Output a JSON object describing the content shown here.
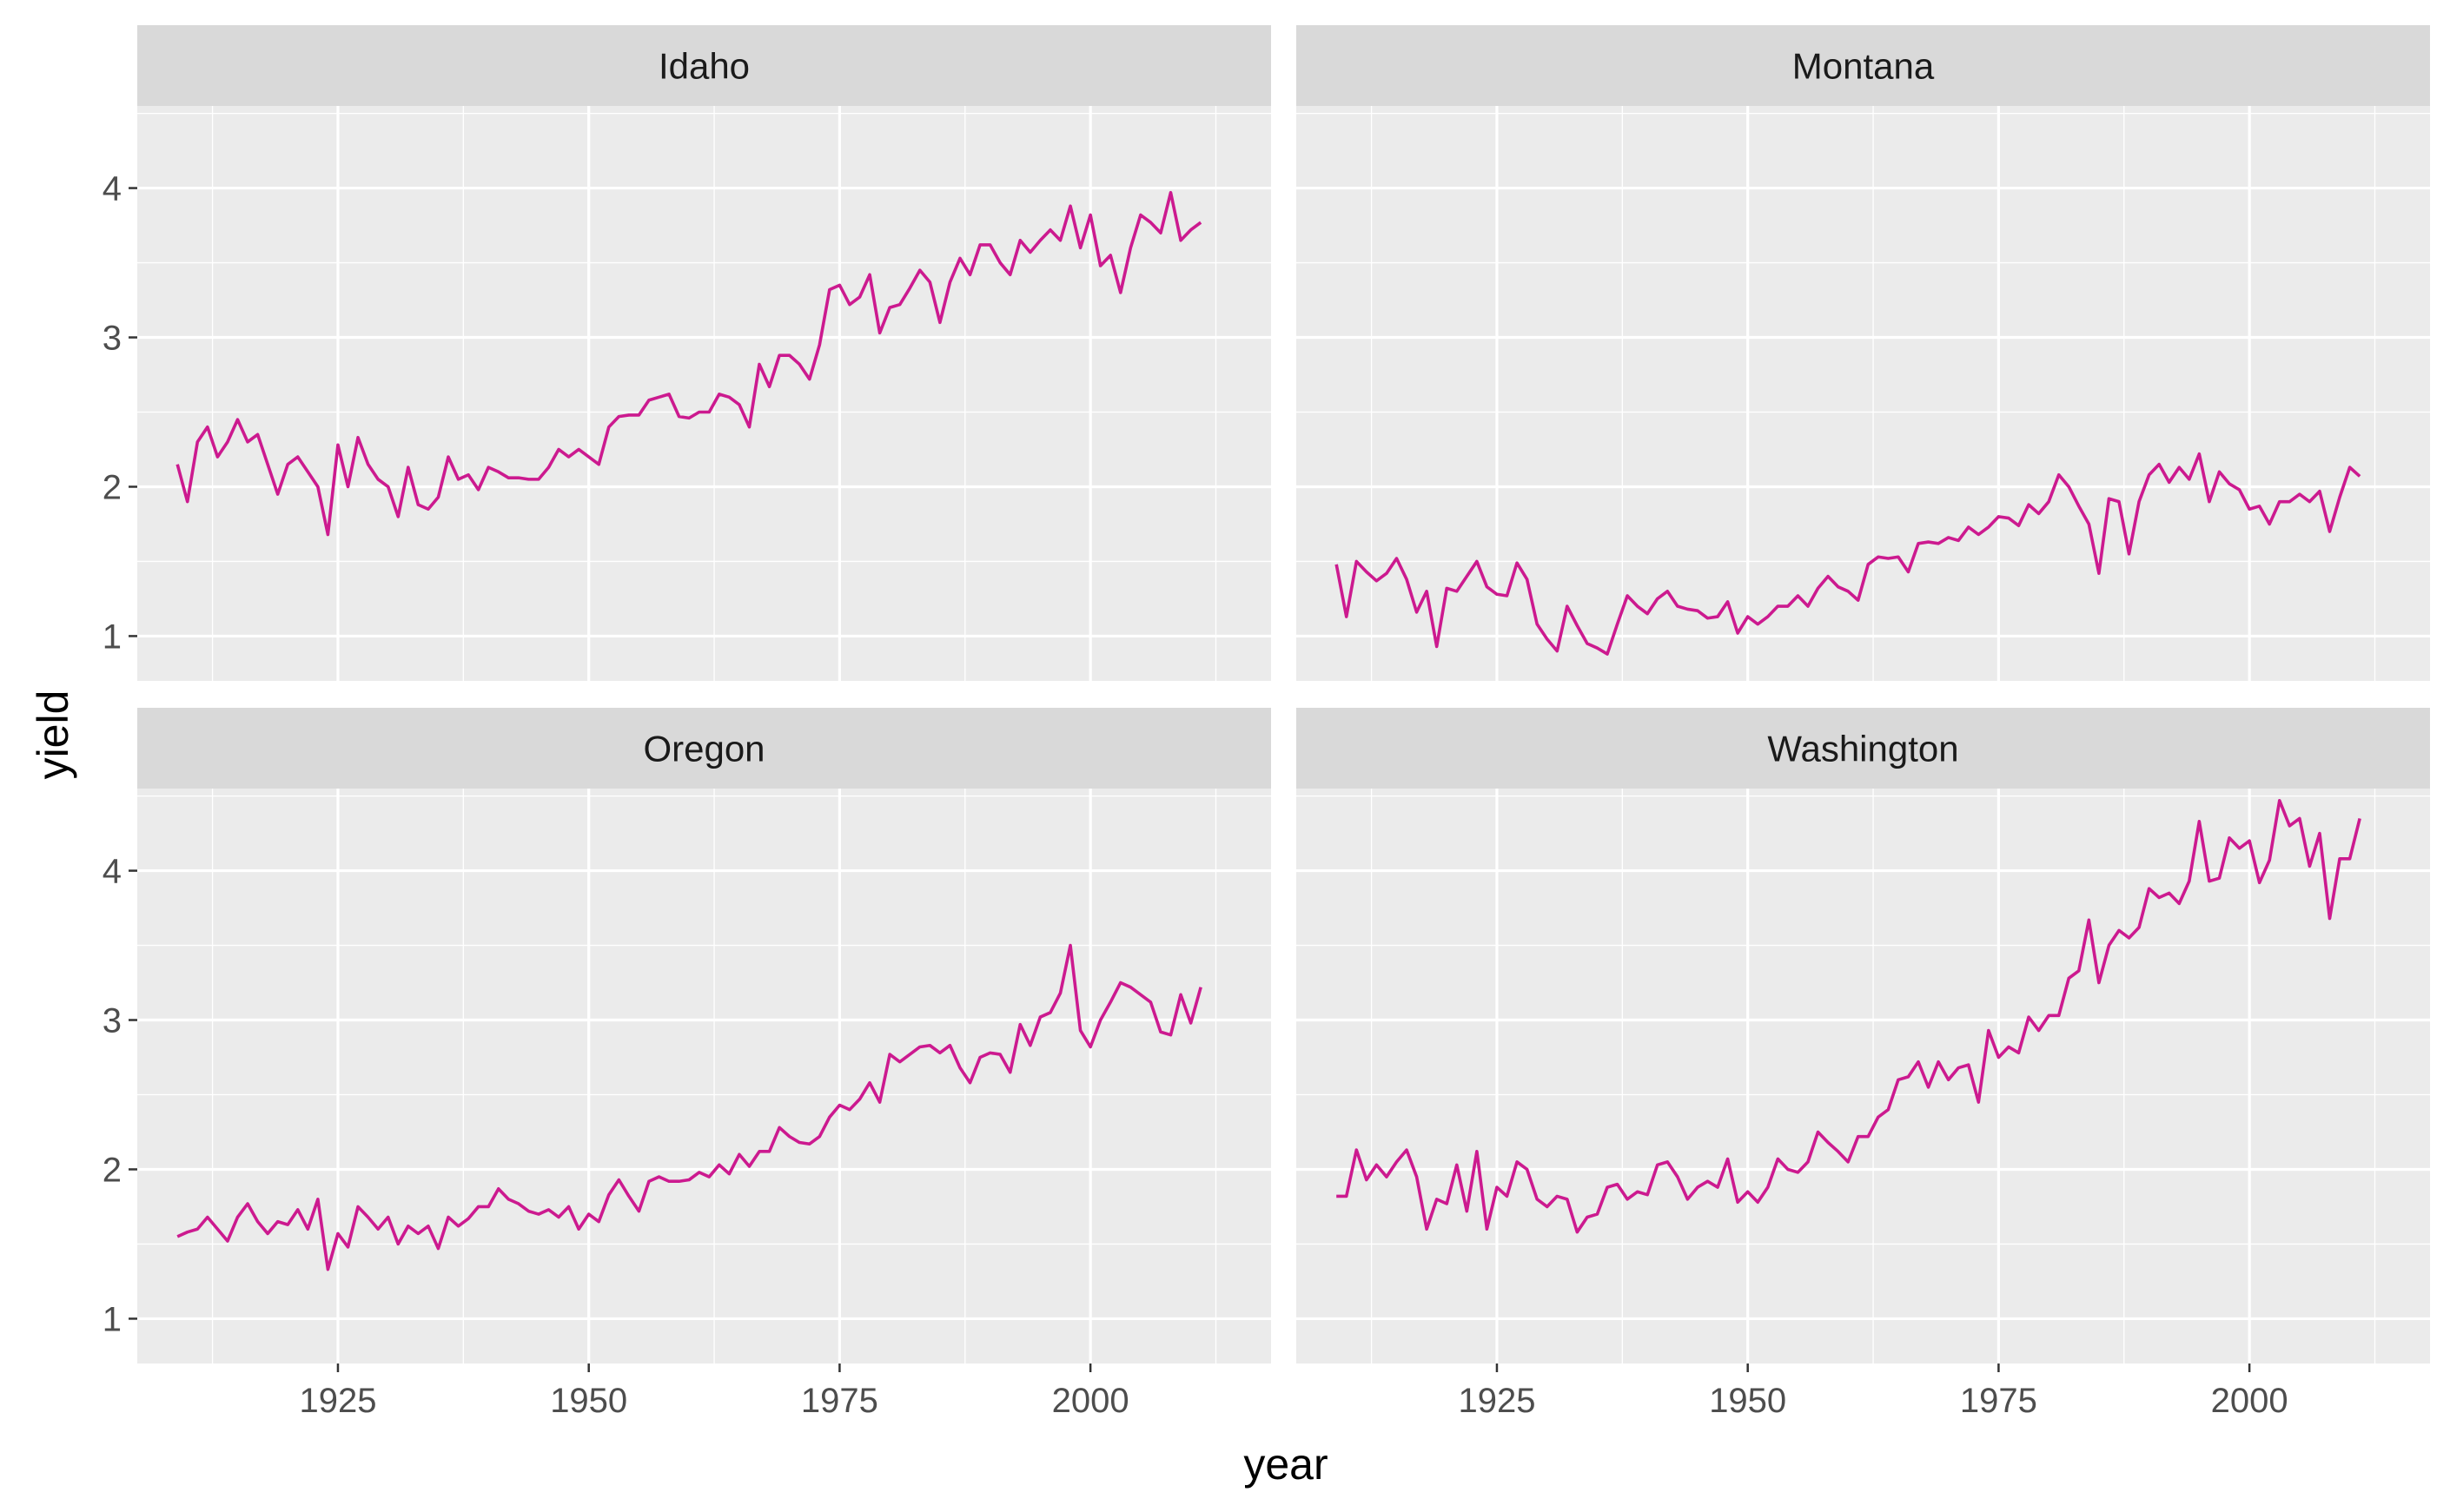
{
  "chart_data": {
    "type": "line",
    "facet_layout": "2x2 grid, shared axes",
    "xlabel": "year",
    "ylabel": "yield",
    "xlim": [
      1905,
      2018
    ],
    "ylim": [
      0.7,
      4.55
    ],
    "x_ticks": [
      1925,
      1950,
      1975,
      2000
    ],
    "x_tick_labels": [
      "1925",
      "1950",
      "1975",
      "2000"
    ],
    "y_ticks": [
      1,
      2,
      3,
      4
    ],
    "y_tick_labels": [
      "1",
      "2",
      "3",
      "4"
    ],
    "line_color": "#CC1A8F",
    "panel_background": "#EBEBEB",
    "strip_background": "#D9D9D9",
    "grid": true,
    "x_start": 1909,
    "panels": [
      {
        "name": "Idaho",
        "values": [
          2.15,
          1.9,
          2.3,
          2.4,
          2.2,
          2.3,
          2.45,
          2.3,
          2.35,
          2.15,
          1.95,
          2.15,
          2.2,
          2.1,
          2.0,
          1.68,
          2.28,
          2.0,
          2.33,
          2.15,
          2.05,
          2.0,
          1.8,
          2.13,
          1.88,
          1.85,
          1.93,
          2.2,
          2.05,
          2.08,
          1.98,
          2.13,
          2.1,
          2.06,
          2.06,
          2.05,
          2.05,
          2.13,
          2.25,
          2.2,
          2.25,
          2.2,
          2.15,
          2.4,
          2.47,
          2.48,
          2.48,
          2.58,
          2.6,
          2.62,
          2.47,
          2.46,
          2.5,
          2.5,
          2.62,
          2.6,
          2.55,
          2.4,
          2.82,
          2.67,
          2.88,
          2.88,
          2.82,
          2.72,
          2.95,
          3.32,
          3.35,
          3.22,
          3.27,
          3.42,
          3.03,
          3.2,
          3.22,
          3.33,
          3.45,
          3.37,
          3.1,
          3.37,
          3.53,
          3.42,
          3.62,
          3.62,
          3.5,
          3.42,
          3.65,
          3.57,
          3.65,
          3.72,
          3.65,
          3.88,
          3.6,
          3.82,
          3.48,
          3.55,
          3.3,
          3.6,
          3.82,
          3.77,
          3.7,
          3.97,
          3.65,
          3.72,
          3.77
        ]
      },
      {
        "name": "Montana",
        "values": [
          1.48,
          1.13,
          1.5,
          1.43,
          1.37,
          1.42,
          1.52,
          1.38,
          1.16,
          1.3,
          0.93,
          1.32,
          1.3,
          1.4,
          1.5,
          1.33,
          1.28,
          1.27,
          1.49,
          1.38,
          1.08,
          0.98,
          0.9,
          1.2,
          1.07,
          0.95,
          0.92,
          0.88,
          1.08,
          1.27,
          1.2,
          1.15,
          1.25,
          1.3,
          1.2,
          1.18,
          1.17,
          1.12,
          1.13,
          1.23,
          1.02,
          1.13,
          1.08,
          1.13,
          1.2,
          1.2,
          1.27,
          1.2,
          1.32,
          1.4,
          1.33,
          1.3,
          1.24,
          1.48,
          1.53,
          1.52,
          1.53,
          1.43,
          1.62,
          1.63,
          1.62,
          1.66,
          1.64,
          1.73,
          1.68,
          1.73,
          1.8,
          1.79,
          1.74,
          1.88,
          1.82,
          1.9,
          2.08,
          2.0,
          1.87,
          1.75,
          1.42,
          1.92,
          1.9,
          1.55,
          1.9,
          2.08,
          2.15,
          2.03,
          2.13,
          2.05,
          2.22,
          1.9,
          2.1,
          2.02,
          1.98,
          1.85,
          1.87,
          1.75,
          1.9,
          1.9,
          1.95,
          1.9,
          1.97,
          1.7,
          1.93,
          2.13,
          2.07
        ]
      },
      {
        "name": "Oregon",
        "values": [
          1.55,
          1.58,
          1.6,
          1.68,
          1.6,
          1.52,
          1.68,
          1.77,
          1.65,
          1.57,
          1.65,
          1.63,
          1.73,
          1.6,
          1.8,
          1.33,
          1.57,
          1.48,
          1.75,
          1.68,
          1.6,
          1.68,
          1.5,
          1.62,
          1.57,
          1.62,
          1.47,
          1.68,
          1.62,
          1.67,
          1.75,
          1.75,
          1.87,
          1.8,
          1.77,
          1.72,
          1.7,
          1.73,
          1.68,
          1.75,
          1.6,
          1.7,
          1.65,
          1.83,
          1.93,
          1.82,
          1.72,
          1.92,
          1.95,
          1.92,
          1.92,
          1.93,
          1.98,
          1.95,
          2.03,
          1.97,
          2.1,
          2.02,
          2.12,
          2.12,
          2.28,
          2.22,
          2.18,
          2.17,
          2.22,
          2.35,
          2.43,
          2.4,
          2.47,
          2.58,
          2.45,
          2.77,
          2.72,
          2.77,
          2.82,
          2.83,
          2.78,
          2.83,
          2.68,
          2.58,
          2.75,
          2.78,
          2.77,
          2.65,
          2.97,
          2.83,
          3.02,
          3.05,
          3.18,
          3.5,
          2.93,
          2.82,
          3.0,
          3.12,
          3.25,
          3.22,
          3.17,
          3.12,
          2.92,
          2.9,
          3.17,
          2.98,
          3.22
        ]
      },
      {
        "name": "Washington",
        "values": [
          1.82,
          1.82,
          2.13,
          1.93,
          2.03,
          1.95,
          2.05,
          2.13,
          1.95,
          1.6,
          1.8,
          1.77,
          2.03,
          1.72,
          2.12,
          1.6,
          1.88,
          1.82,
          2.05,
          2.0,
          1.8,
          1.75,
          1.82,
          1.8,
          1.58,
          1.68,
          1.7,
          1.88,
          1.9,
          1.8,
          1.85,
          1.83,
          2.03,
          2.05,
          1.95,
          1.8,
          1.88,
          1.92,
          1.88,
          2.07,
          1.78,
          1.85,
          1.78,
          1.88,
          2.07,
          2.0,
          1.98,
          2.05,
          2.25,
          2.18,
          2.12,
          2.05,
          2.22,
          2.22,
          2.35,
          2.4,
          2.6,
          2.62,
          2.72,
          2.55,
          2.72,
          2.6,
          2.68,
          2.7,
          2.45,
          2.93,
          2.75,
          2.82,
          2.78,
          3.02,
          2.93,
          3.03,
          3.03,
          3.28,
          3.33,
          3.67,
          3.25,
          3.5,
          3.6,
          3.55,
          3.62,
          3.88,
          3.82,
          3.85,
          3.78,
          3.93,
          4.33,
          3.93,
          3.95,
          4.22,
          4.15,
          4.2,
          3.92,
          4.07,
          4.47,
          4.3,
          4.35,
          4.03,
          4.25,
          3.68,
          4.08,
          4.08,
          4.35
        ]
      }
    ]
  }
}
